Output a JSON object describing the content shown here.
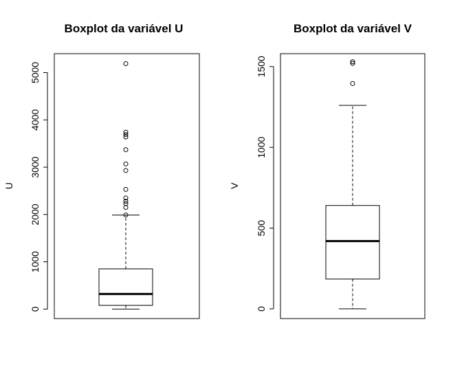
{
  "chart_data": [
    {
      "type": "boxplot",
      "title": "Boxplot da variável U",
      "xlabel": "",
      "ylabel": "U",
      "ylim": [
        -200,
        5400
      ],
      "yticks": [
        0,
        1000,
        2000,
        3000,
        4000,
        5000
      ],
      "ytick_labels": [
        "0",
        "1000",
        "2000",
        "3000",
        "4000",
        "5000"
      ],
      "grid": false,
      "box": {
        "whisker_low": 0,
        "q1": 80,
        "median": 320,
        "q3": 850,
        "whisker_high": 1990
      },
      "outliers": [
        1990,
        2150,
        2230,
        2280,
        2350,
        2530,
        2930,
        3070,
        3370,
        3640,
        3690,
        3740,
        5190
      ]
    },
    {
      "type": "boxplot",
      "title": "Boxplot da variável V",
      "xlabel": "",
      "ylabel": "V",
      "ylim": [
        -60,
        1580
      ],
      "yticks": [
        0,
        500,
        1000,
        1500
      ],
      "ytick_labels": [
        "0",
        "500",
        "1000",
        "1500"
      ],
      "grid": false,
      "box": {
        "whisker_low": 0,
        "q1": 185,
        "median": 420,
        "q3": 640,
        "whisker_high": 1260
      },
      "outliers": [
        1395,
        1520,
        1530
      ]
    }
  ]
}
